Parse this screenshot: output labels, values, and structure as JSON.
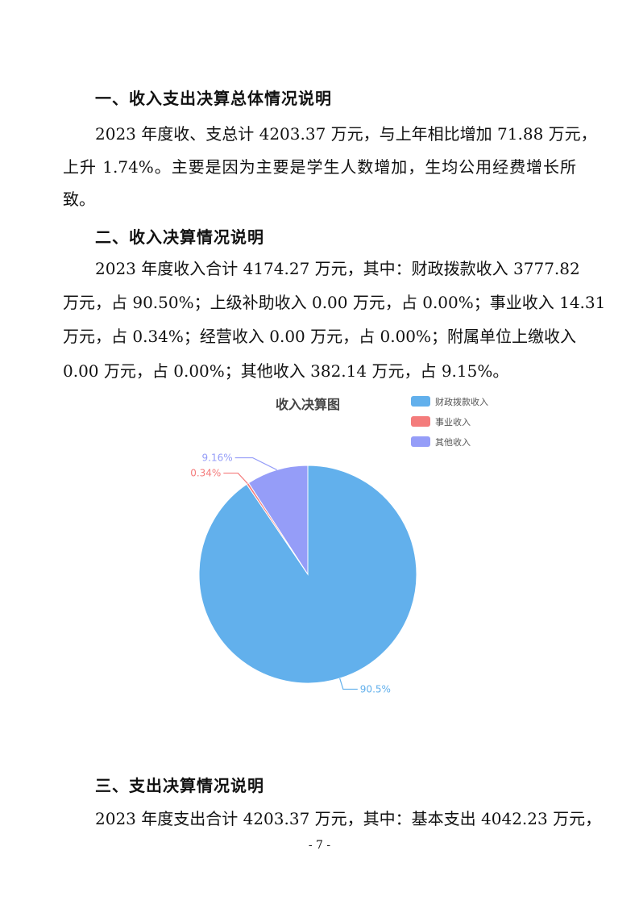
{
  "sections": [
    {
      "heading": "一、收入支出决算总体情况说明",
      "lines": [
        "2023 年度收、支总计 4203.37 万元，与上年相比增加 71.88 万元，",
        "上升 1.74%。主要是因为主要是学生人数增加，生均公用经费增长所",
        "致。"
      ]
    },
    {
      "heading": "二、收入决算情况说明",
      "lines": [
        "2023 年度收入合计 4174.27 万元，其中：财政拨款收入 3777.82",
        "万元，占 90.50%；上级补助收入 0.00 万元，占 0.00%；事业收入 14.31",
        "万元，占 0.34%；经营收入 0.00 万元，占 0.00%；附属单位上缴收入",
        "0.00 万元，占 0.00%；其他收入 382.14 万元，占 9.15%。"
      ]
    },
    {
      "heading": "三、支出决算情况说明",
      "lines": [
        "2023 年度支出合计 4203.37 万元，其中：基本支出 4042.23 万元，"
      ]
    }
  ],
  "page_number": "- 7 -",
  "chart_data": {
    "type": "pie",
    "title": "收入决算图",
    "legend_placement": "top-right",
    "categories": [
      "财政拨款收入",
      "事业收入",
      "其他收入"
    ],
    "values": [
      90.5,
      0.34,
      9.16
    ],
    "labels": [
      "90.5%",
      "0.34%",
      "9.16%"
    ],
    "colors": [
      "#62b0ec",
      "#f47c7c",
      "#959df8"
    ]
  }
}
